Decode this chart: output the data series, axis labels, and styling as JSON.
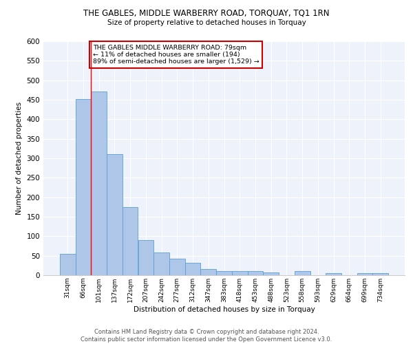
{
  "title": "THE GABLES, MIDDLE WARBERRY ROAD, TORQUAY, TQ1 1RN",
  "subtitle": "Size of property relative to detached houses in Torquay",
  "xlabel": "Distribution of detached houses by size in Torquay",
  "ylabel": "Number of detached properties",
  "categories": [
    "31sqm",
    "66sqm",
    "101sqm",
    "137sqm",
    "172sqm",
    "207sqm",
    "242sqm",
    "277sqm",
    "312sqm",
    "347sqm",
    "383sqm",
    "418sqm",
    "453sqm",
    "488sqm",
    "523sqm",
    "558sqm",
    "593sqm",
    "629sqm",
    "664sqm",
    "699sqm",
    "734sqm"
  ],
  "values": [
    54,
    452,
    472,
    311,
    175,
    90,
    59,
    43,
    31,
    16,
    10,
    10,
    10,
    7,
    0,
    10,
    0,
    5,
    0,
    5,
    5
  ],
  "bar_color": "#aec6e8",
  "bar_edge_color": "#5a9fd4",
  "background_color": "#eef3fb",
  "grid_color": "#ffffff",
  "red_line_x": 1.5,
  "annotation_text": "THE GABLES MIDDLE WARBERRY ROAD: 79sqm\n← 11% of detached houses are smaller (194)\n89% of semi-detached houses are larger (1,529) →",
  "annotation_box_color": "#ffffff",
  "annotation_box_edge_color": "#cc0000",
  "footer": "Contains HM Land Registry data © Crown copyright and database right 2024.\nContains public sector information licensed under the Open Government Licence v3.0.",
  "ylim": [
    0,
    600
  ],
  "yticks": [
    0,
    50,
    100,
    150,
    200,
    250,
    300,
    350,
    400,
    450,
    500,
    550,
    600
  ]
}
